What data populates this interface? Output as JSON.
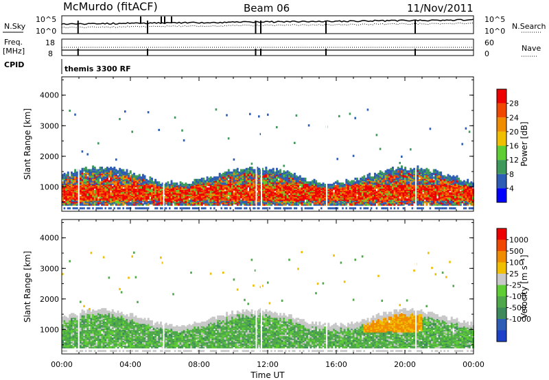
{
  "header": {
    "station": "McMurdo (fitACF)",
    "beam": "Beam 06",
    "date": "11/Nov/2011"
  },
  "top_panels": {
    "nsky": {
      "left_label": "N.Sky",
      "right_label": "N.Search",
      "tick_top": "10^5",
      "tick_bottom": "10^0"
    },
    "freq": {
      "left_label_1": "Freq.",
      "left_label_2": "[MHz]",
      "right_label": "Nave",
      "tick_top": "18",
      "tick_bottom": "8",
      "right_tick_top": "60",
      "right_tick_bottom": "0"
    },
    "cpid": {
      "label": "CPID",
      "value": "themis 3300 RF"
    }
  },
  "chart_data": [
    {
      "type": "heatmap",
      "name": "power-panel",
      "ylabel": "Slant Range [km]",
      "xlabel": "",
      "ylim": [
        200,
        4600
      ],
      "xlim": [
        0,
        24
      ],
      "yticks": [
        1000,
        2000,
        3000,
        4000
      ],
      "ytick_labels": [
        "1000",
        "2000",
        "3000",
        "4000"
      ],
      "colorbar": {
        "label": "Power [dB]",
        "labels": [
          "4",
          "8",
          "12",
          "16",
          "20",
          "24",
          "28"
        ],
        "colors": [
          "#0000ff",
          "#2e5db5",
          "#3e9a5b",
          "#5fcd34",
          "#f0c000",
          "#f08c00",
          "#f04800",
          "#ee0000"
        ]
      }
    },
    {
      "type": "heatmap",
      "name": "velocity-panel",
      "ylabel": "Slant Range [km]",
      "xlabel": "Time UT",
      "ylim": [
        200,
        4600
      ],
      "xlim": [
        0,
        24
      ],
      "yticks": [
        1000,
        2000,
        3000,
        4000
      ],
      "ytick_labels": [
        "1000",
        "2000",
        "3000",
        "4000"
      ],
      "xticks": [
        0,
        4,
        8,
        12,
        16,
        20,
        24
      ],
      "xtick_labels": [
        "00:00",
        "04:00",
        "08:00",
        "12:00",
        "16:00",
        "20:00",
        "00:00"
      ],
      "colorbar": {
        "label": "Velocity [m s⁻¹]",
        "labels": [
          "1000",
          "500",
          "100",
          "25",
          "-25",
          "-100",
          "-500",
          "-1000"
        ],
        "colors": [
          "#1c40c8",
          "#2e5db5",
          "#3e8a5b",
          "#4fa84a",
          "#5fcd34",
          "#c8c8c8",
          "#f0c000",
          "#f08c00",
          "#f04800",
          "#ee0000"
        ]
      }
    }
  ]
}
